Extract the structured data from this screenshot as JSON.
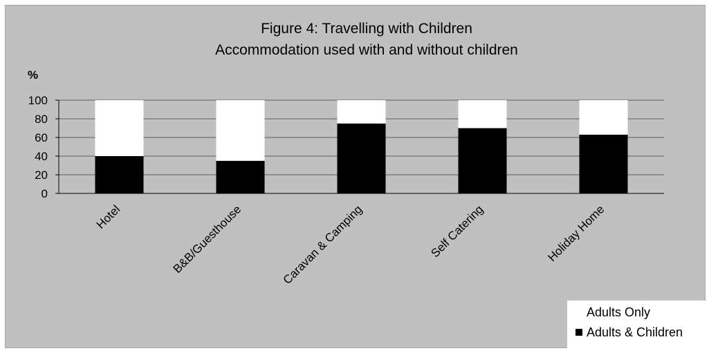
{
  "chart_data": {
    "type": "bar",
    "stacked": true,
    "title": "Figure 4: Travelling with Children",
    "subtitle": "Accommodation used with and without children",
    "ylabel": "%",
    "xlabel": "",
    "ylim": [
      0,
      100
    ],
    "yticks": [
      0,
      20,
      40,
      60,
      80,
      100
    ],
    "grid": true,
    "legend_position": "bottom-right",
    "categories": [
      "Hotel",
      "B&B/Guesthouse",
      "Caravan & Camping",
      "Self Catering",
      "Holiday Home"
    ],
    "series": [
      {
        "name": "Adults & Children",
        "values": [
          40,
          35,
          75,
          70,
          63
        ],
        "color": "#000000"
      },
      {
        "name": "Adults Only",
        "values": [
          60,
          65,
          25,
          30,
          37
        ],
        "color": "#ffffff"
      }
    ],
    "legend_order": [
      "Adults Only",
      "Adults & Children"
    ],
    "background_color": "#c0c0c0"
  }
}
